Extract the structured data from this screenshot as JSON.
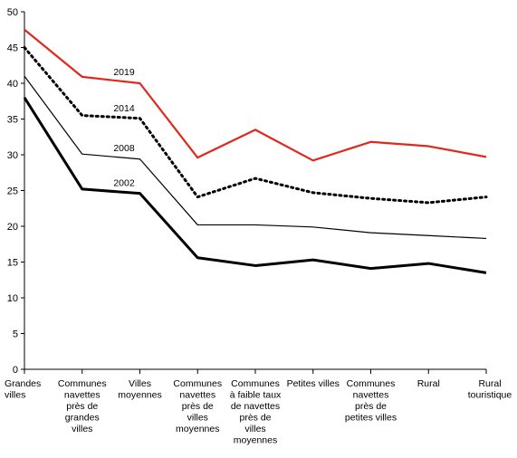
{
  "chart_data": {
    "type": "line",
    "title": "",
    "xlabel": "",
    "ylabel": "",
    "ylim": [
      0,
      50
    ],
    "yticks": [
      0,
      5,
      10,
      15,
      20,
      25,
      30,
      35,
      40,
      45,
      50
    ],
    "grid": false,
    "legend": "inline labels",
    "categories": [
      [
        "Grandes",
        "villes"
      ],
      [
        "Communes",
        "navettes",
        "près de",
        "grandes",
        "villes"
      ],
      [
        "Villes",
        "moyennes"
      ],
      [
        "Communes",
        "navettes",
        "près de",
        "villes",
        "moyennes"
      ],
      [
        "Communes",
        "à faible taux",
        "de navettes",
        "près de",
        "villes",
        "moyennes"
      ],
      [
        "Petites villes"
      ],
      [
        "Communes",
        "navettes",
        "près de",
        "petites villes"
      ],
      [
        "Rural"
      ],
      [
        "Rural",
        "touristique"
      ]
    ],
    "series": [
      {
        "name": "2019",
        "color": "#e0281e",
        "style": "solid-medium",
        "values": [
          47.5,
          40.9,
          40.0,
          29.6,
          33.5,
          29.2,
          31.8,
          31.2,
          29.7
        ]
      },
      {
        "name": "2014",
        "color": "#000000",
        "style": "dotted",
        "values": [
          45.0,
          35.5,
          35.1,
          24.1,
          26.7,
          24.7,
          23.9,
          23.3,
          24.1
        ]
      },
      {
        "name": "2008",
        "color": "#000000",
        "style": "solid-thin",
        "values": [
          41.0,
          30.1,
          29.4,
          20.2,
          20.2,
          19.9,
          19.1,
          18.7,
          18.3
        ]
      },
      {
        "name": "2002",
        "color": "#000000",
        "style": "solid-thick",
        "values": [
          38.0,
          25.2,
          24.6,
          15.6,
          14.5,
          15.3,
          14.1,
          14.8,
          13.5
        ]
      }
    ]
  }
}
